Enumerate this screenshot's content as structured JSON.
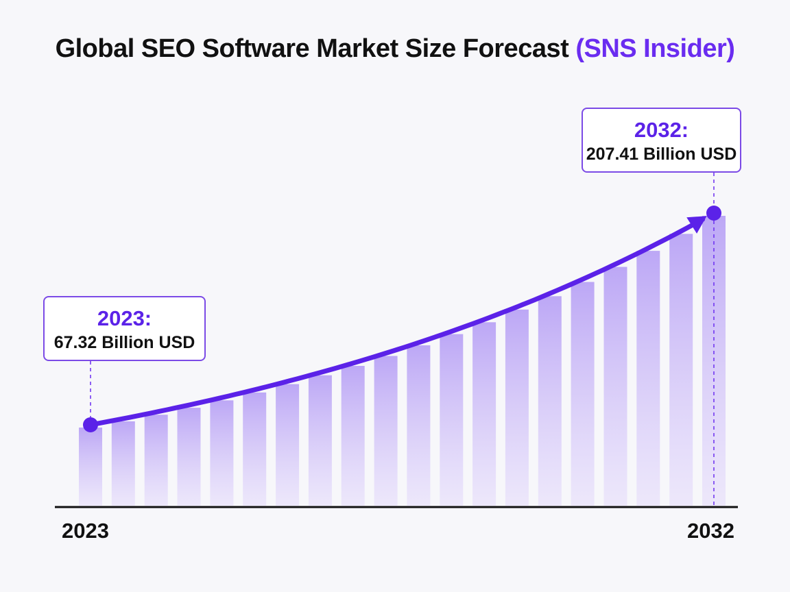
{
  "title": {
    "main": "Global SEO Software Market Size Forecast",
    "source": "(SNS Insider)"
  },
  "callouts": {
    "start": {
      "year_label": "2023:",
      "value_label": "67.32 Billion USD"
    },
    "end": {
      "year_label": "2032:",
      "value_label": "207.41 Billion USD"
    }
  },
  "colors": {
    "accent": "#5b22e8",
    "bar_fill": "#c9b8f7",
    "axis": "#111111"
  },
  "chart_data": {
    "type": "area",
    "title": "Global SEO Software Market Size Forecast (SNS Insider)",
    "x_tick_labels": [
      "2023",
      "2032"
    ],
    "series": [
      {
        "x": [
          2023,
          2032
        ],
        "values": [
          67.32,
          207.41
        ]
      }
    ],
    "unit": "Billion USD",
    "curve": "exponential growth",
    "marker_arrow": true,
    "bars": 20,
    "grid": false,
    "legend": "none"
  }
}
